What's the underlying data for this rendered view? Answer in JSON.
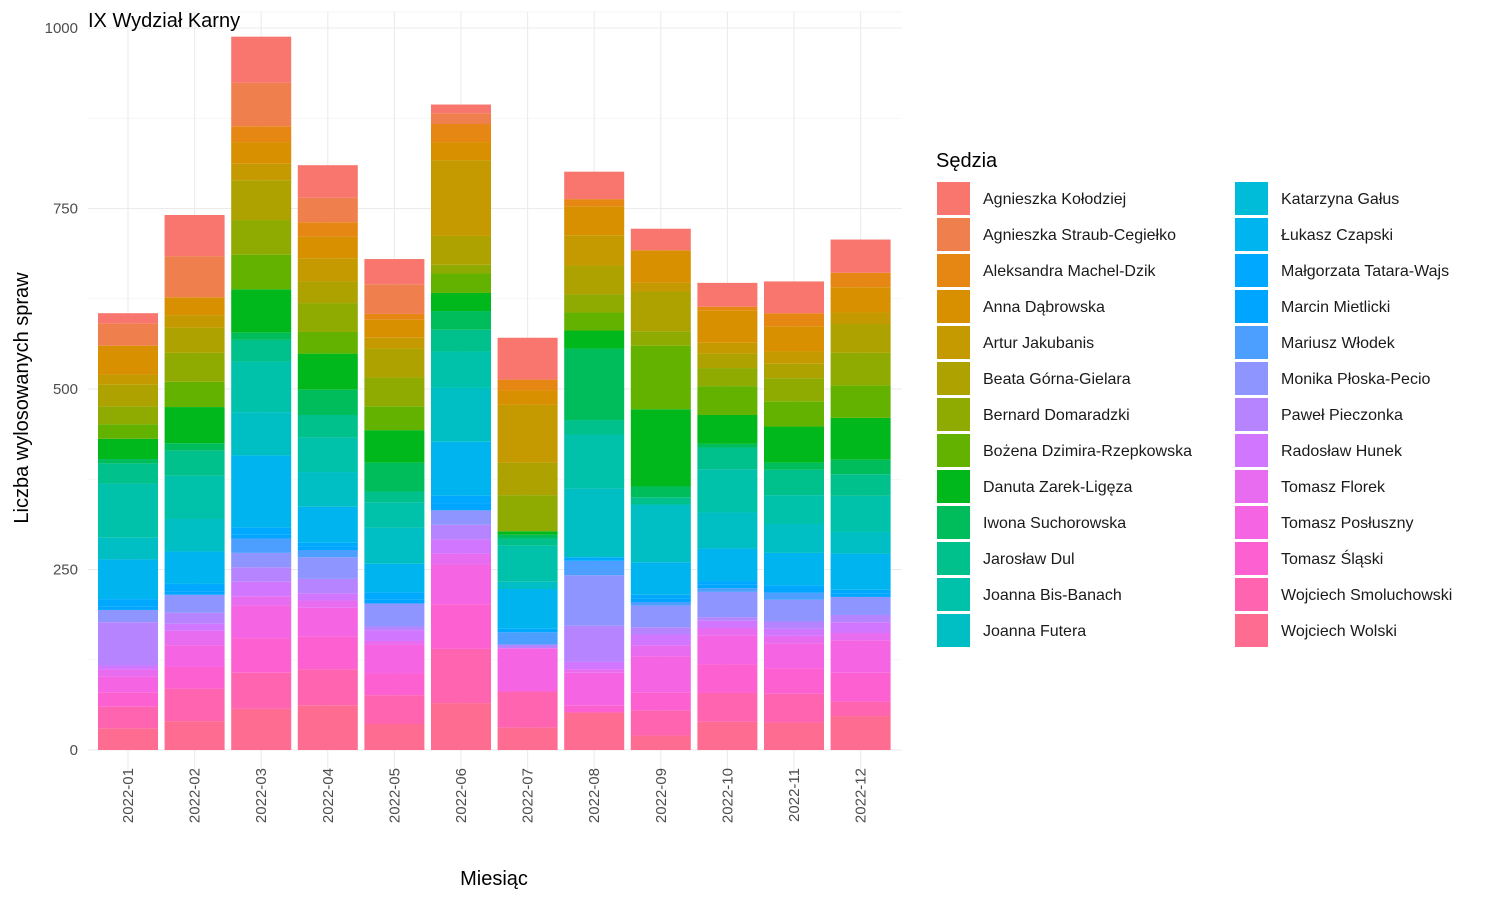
{
  "chart_data": {
    "type": "bar",
    "stacked": true,
    "title": "IX Wydział Karny",
    "xlabel": "Miesiąc",
    "ylabel": "Liczba wylosowanych spraw",
    "ylim": [
      0,
      1000
    ],
    "yticks": [
      0,
      250,
      500,
      750,
      1000
    ],
    "grid": true,
    "legend_title": "Sędzia",
    "legend_position": "right",
    "categories": [
      "2022-01",
      "2022-02",
      "2022-03",
      "2022-04",
      "2022-05",
      "2022-06",
      "2022-07",
      "2022-08",
      "2022-09",
      "2022-10",
      "2022-11",
      "2022-12"
    ],
    "series": [
      {
        "name": "Agnieszka Kołodziej",
        "color": "#F8766D",
        "values": [
          14,
          57,
          64,
          45,
          35,
          12,
          58,
          38,
          30,
          33,
          44,
          46
        ]
      },
      {
        "name": "Agnieszka Straub-Cegiełko",
        "color": "#F07F4E",
        "values": [
          31,
          57,
          60,
          34,
          41,
          15,
          0,
          0,
          0,
          0,
          0,
          0
        ]
      },
      {
        "name": "Aleksandra Machel-Dzik",
        "color": "#E68613",
        "values": [
          0,
          0,
          22,
          20,
          8,
          25,
          15,
          10,
          0,
          5,
          18,
          20
        ]
      },
      {
        "name": "Anna Dąbrowska",
        "color": "#D89000",
        "values": [
          40,
          25,
          30,
          30,
          25,
          25,
          20,
          40,
          45,
          45,
          35,
          35
        ]
      },
      {
        "name": "Artur Jakubanis",
        "color": "#C49A00",
        "values": [
          14,
          17,
          23,
          32,
          15,
          105,
          80,
          42,
          12,
          15,
          17,
          16
        ]
      },
      {
        "name": "Beata Górna-Gielara",
        "color": "#AEA200",
        "values": [
          30,
          35,
          55,
          30,
          40,
          40,
          45,
          40,
          55,
          20,
          20,
          40
        ]
      },
      {
        "name": "Bernard Domaradzki",
        "color": "#8FAA00",
        "values": [
          25,
          40,
          48,
          40,
          40,
          12,
          50,
          25,
          20,
          25,
          32,
          45
        ]
      },
      {
        "name": "Bożena Dzimira-Rzepkowska",
        "color": "#64B200",
        "values": [
          20,
          35,
          48,
          30,
          33,
          27,
          0,
          25,
          88,
          40,
          35,
          45
        ]
      },
      {
        "name": "Danuta Zarek-Ligęza",
        "color": "#00B81B",
        "values": [
          28,
          50,
          60,
          50,
          45,
          25,
          5,
          25,
          107,
          40,
          50,
          58
        ]
      },
      {
        "name": "Iwona Suchorowska",
        "color": "#00BD5C",
        "values": [
          6,
          10,
          10,
          35,
          40,
          26,
          5,
          99,
          15,
          5,
          10,
          20
        ]
      },
      {
        "name": "Jarosław Dul",
        "color": "#00C08B",
        "values": [
          28,
          35,
          30,
          31,
          15,
          30,
          10,
          20,
          10,
          30,
          35,
          30
        ]
      },
      {
        "name": "Joanna Bis-Banach",
        "color": "#00C1AA",
        "values": [
          75,
          60,
          70,
          48,
          35,
          50,
          50,
          75,
          0,
          60,
          40,
          50
        ]
      },
      {
        "name": "Joanna Futera",
        "color": "#00BFC4",
        "values": [
          30,
          45,
          60,
          48,
          50,
          75,
          10,
          95,
          80,
          50,
          40,
          30
        ]
      },
      {
        "name": "Katarzyna Gałus",
        "color": "#00BCD8",
        "values": [
          0,
          0,
          0,
          0,
          0,
          0,
          0,
          0,
          0,
          0,
          0,
          0
        ]
      },
      {
        "name": "Łukasz Czapski",
        "color": "#00B4EF",
        "values": [
          55,
          45,
          100,
          50,
          40,
          75,
          55,
          0,
          45,
          45,
          45,
          50
        ]
      },
      {
        "name": "Małgorzata Tatara-Wajs",
        "color": "#00A9FF",
        "values": [
          10,
          10,
          10,
          5,
          10,
          10,
          5,
          5,
          5,
          5,
          5,
          5
        ]
      },
      {
        "name": "Marcin Mietlicki",
        "color": "#00A5FF",
        "values": [
          5,
          5,
          5,
          5,
          5,
          10,
          0,
          0,
          5,
          5,
          5,
          5
        ]
      },
      {
        "name": "Mariusz Włodek",
        "color": "#4C9FFF",
        "values": [
          0,
          0,
          20,
          10,
          0,
          0,
          17,
          20,
          5,
          5,
          10,
          0
        ]
      },
      {
        "name": "Monika Płoska-Pecio",
        "color": "#8E95FF",
        "values": [
          17,
          25,
          20,
          30,
          32,
          20,
          0,
          70,
          30,
          35,
          30,
          25
        ]
      },
      {
        "name": "Paweł Pieczonka",
        "color": "#B684FF",
        "values": [
          60,
          15,
          20,
          20,
          5,
          20,
          5,
          50,
          10,
          5,
          10,
          10
        ]
      },
      {
        "name": "Radosław Hunek",
        "color": "#D177FF",
        "values": [
          5,
          10,
          20,
          10,
          15,
          20,
          0,
          10,
          15,
          10,
          10,
          15
        ]
      },
      {
        "name": "Tomasz Florek",
        "color": "#E86CF0",
        "values": [
          10,
          20,
          13,
          10,
          5,
          15,
          0,
          5,
          15,
          10,
          10,
          10
        ]
      },
      {
        "name": "Tomasz Posłuszny",
        "color": "#F564E3",
        "values": [
          22,
          30,
          45,
          40,
          40,
          55,
          60,
          45,
          50,
          40,
          35,
          45
        ]
      },
      {
        "name": "Tomasz Śląski",
        "color": "#FD61D1",
        "values": [
          20,
          30,
          48,
          45,
          30,
          62,
          0,
          10,
          25,
          40,
          35,
          40
        ]
      },
      {
        "name": "Wojciech Smoluchowski",
        "color": "#FF64B0",
        "values": [
          30,
          45,
          50,
          50,
          40,
          75,
          50,
          0,
          35,
          40,
          40,
          20
        ]
      },
      {
        "name": "Wojciech Wolski",
        "color": "#FF6C91",
        "values": [
          30,
          40,
          57,
          62,
          36,
          65,
          31,
          52,
          20,
          39,
          38,
          47
        ]
      }
    ]
  }
}
